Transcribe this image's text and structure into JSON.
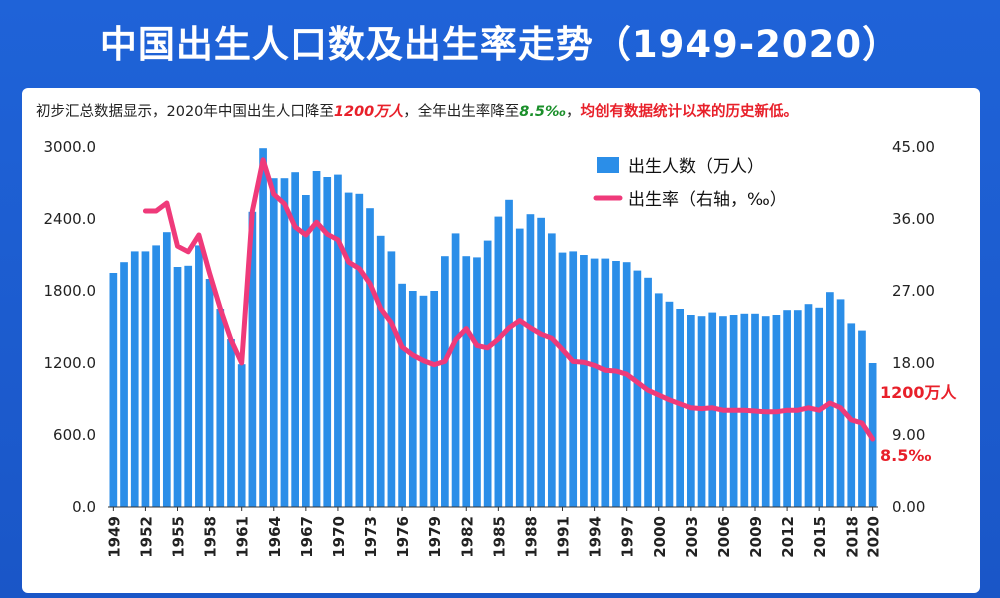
{
  "title": "中国出生人口数及出生率走势（1949-2020）",
  "subtitle": {
    "part1": "初步汇总数据显示，2020年中国出生人口降至",
    "births_highlight": "1200万人",
    "part2": "，全年出生率降至",
    "rate_highlight": "8.5‰",
    "part3": "，",
    "conclusion": "均创有数据统计以来的历史新低。"
  },
  "colors": {
    "background": "#1f63d8",
    "bar": "#2b8ee8",
    "line": "#ef3a7a",
    "annotation": "#e8202a",
    "highlight_green": "#1a8f2a"
  },
  "chart_data": {
    "type": "bar",
    "y_left": {
      "ylim": [
        0,
        3000
      ],
      "ticks": [
        "0.0",
        "600.0",
        "1200.0",
        "1800.0",
        "2400.0",
        "3000.0"
      ]
    },
    "y_right": {
      "ylim": [
        0,
        45
      ],
      "ticks": [
        "0.00",
        "9.00",
        "18.00",
        "27.00",
        "36.00",
        "45.00"
      ]
    },
    "x_ticks": [
      "1949",
      "1952",
      "1955",
      "1958",
      "1961",
      "1964",
      "1967",
      "1970",
      "1973",
      "1976",
      "1979",
      "1982",
      "1985",
      "1988",
      "1991",
      "1994",
      "1997",
      "2000",
      "2003",
      "2006",
      "2009",
      "2012",
      "2015",
      "2018",
      "2020"
    ],
    "legend": {
      "position": "top-right"
    },
    "grid": false,
    "series": [
      {
        "name": "出生人数（万人）",
        "type": "bar",
        "axis": "left",
        "x": [
          1949,
          1950,
          1951,
          1952,
          1953,
          1954,
          1955,
          1956,
          1957,
          1958,
          1959,
          1960,
          1961,
          1962,
          1963,
          1964,
          1965,
          1966,
          1967,
          1968,
          1969,
          1970,
          1971,
          1972,
          1973,
          1974,
          1975,
          1976,
          1977,
          1978,
          1979,
          1980,
          1981,
          1982,
          1983,
          1984,
          1985,
          1986,
          1987,
          1988,
          1989,
          1990,
          1991,
          1992,
          1993,
          1994,
          1995,
          1996,
          1997,
          1998,
          1999,
          2000,
          2001,
          2002,
          2003,
          2004,
          2005,
          2006,
          2007,
          2008,
          2009,
          2010,
          2011,
          2012,
          2013,
          2014,
          2015,
          2016,
          2017,
          2018,
          2019,
          2020
        ],
        "values": [
          1950,
          2040,
          2130,
          2130,
          2180,
          2290,
          2000,
          2010,
          2180,
          1900,
          1650,
          1400,
          1190,
          2460,
          2990,
          2740,
          2740,
          2790,
          2600,
          2800,
          2750,
          2770,
          2620,
          2610,
          2490,
          2260,
          2130,
          1860,
          1800,
          1760,
          1800,
          2090,
          2280,
          2090,
          2080,
          2220,
          2420,
          2560,
          2320,
          2440,
          2410,
          2280,
          2120,
          2130,
          2100,
          2070,
          2070,
          2050,
          2040,
          1970,
          1910,
          1780,
          1710,
          1650,
          1600,
          1590,
          1620,
          1590,
          1600,
          1610,
          1610,
          1590,
          1600,
          1640,
          1640,
          1690,
          1660,
          1790,
          1730,
          1530,
          1470,
          1200
        ]
      },
      {
        "name": "出生率（右轴，‰）",
        "type": "line",
        "axis": "right",
        "x": [
          1952,
          1953,
          1954,
          1955,
          1956,
          1957,
          1958,
          1959,
          1960,
          1961,
          1962,
          1963,
          1964,
          1965,
          1966,
          1967,
          1968,
          1969,
          1970,
          1971,
          1972,
          1973,
          1974,
          1975,
          1976,
          1977,
          1978,
          1979,
          1980,
          1981,
          1982,
          1983,
          1984,
          1985,
          1986,
          1987,
          1988,
          1989,
          1990,
          1991,
          1992,
          1993,
          1994,
          1995,
          1996,
          1997,
          1998,
          1999,
          2000,
          2001,
          2002,
          2003,
          2004,
          2005,
          2006,
          2007,
          2008,
          2009,
          2010,
          2011,
          2012,
          2013,
          2014,
          2015,
          2016,
          2017,
          2018,
          2019,
          2020
        ],
        "values": [
          37.0,
          37.0,
          38.0,
          32.6,
          31.9,
          34.0,
          29.2,
          24.8,
          20.9,
          18.0,
          37.0,
          43.4,
          39.1,
          37.9,
          35.0,
          34.0,
          35.6,
          34.1,
          33.4,
          30.6,
          29.8,
          27.9,
          24.8,
          23.0,
          20.0,
          19.0,
          18.3,
          17.8,
          18.2,
          20.9,
          22.3,
          20.2,
          19.9,
          21.0,
          22.4,
          23.3,
          22.4,
          21.6,
          21.1,
          19.7,
          18.2,
          18.1,
          17.7,
          17.1,
          17.0,
          16.6,
          15.6,
          14.6,
          14.0,
          13.4,
          12.9,
          12.4,
          12.3,
          12.4,
          12.1,
          12.1,
          12.1,
          12.0,
          11.9,
          11.9,
          12.1,
          12.1,
          12.4,
          12.1,
          13.0,
          12.4,
          10.9,
          10.5,
          8.5
        ]
      }
    ],
    "annotations": {
      "births_2020": "1200万人",
      "rate_2020": "8.5‰"
    }
  }
}
